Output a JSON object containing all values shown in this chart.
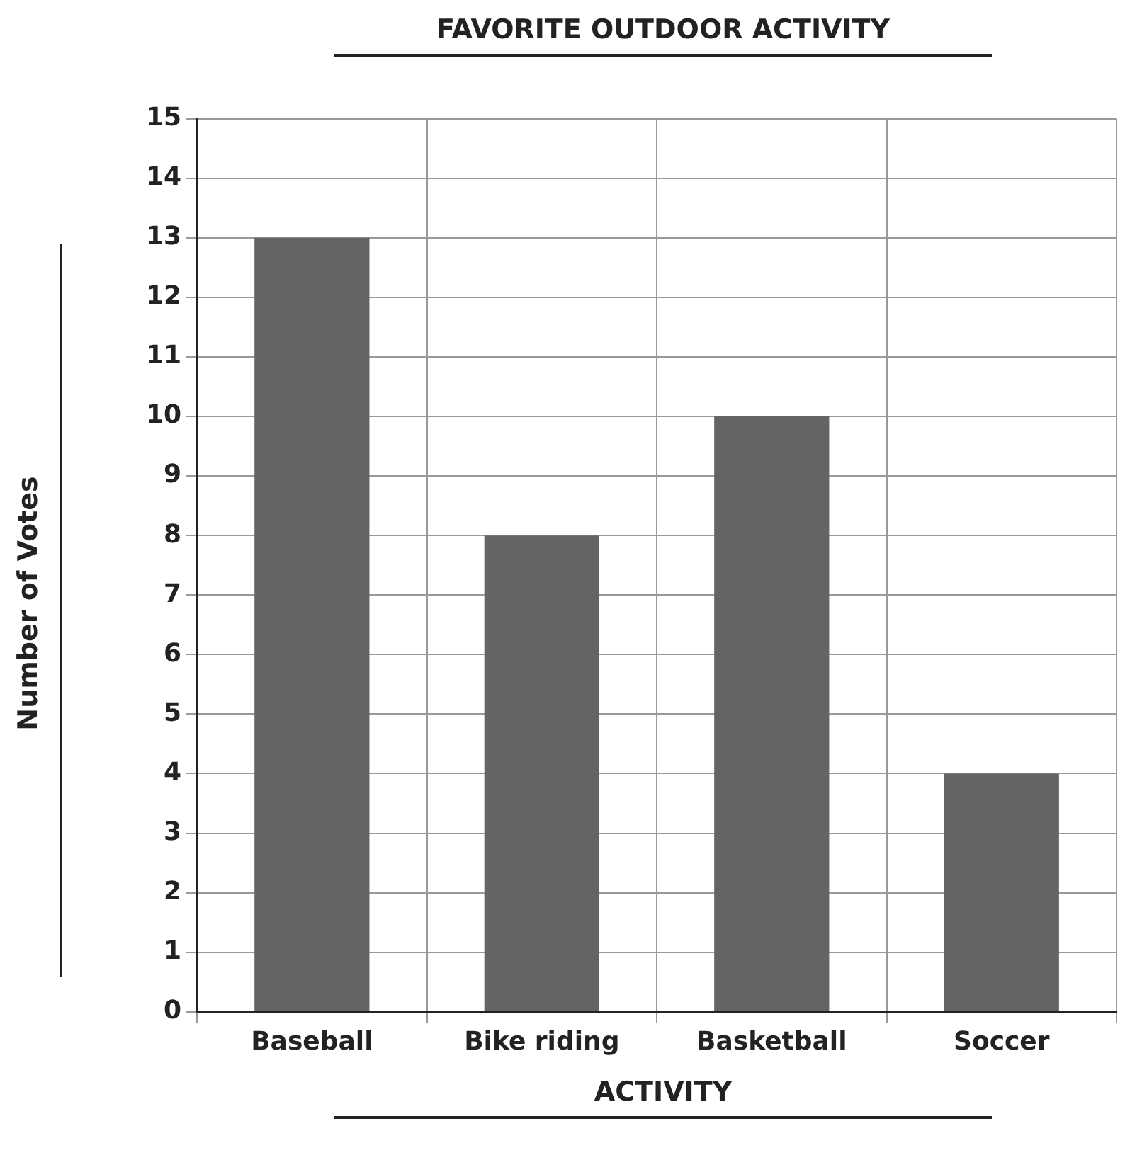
{
  "chart_data": {
    "type": "bar",
    "title": "FAVORITE OUTDOOR ACTIVITY",
    "xlabel": "ACTIVITY",
    "ylabel": "Number of Votes",
    "categories": [
      "Baseball",
      "Bike riding",
      "Basketball",
      "Soccer"
    ],
    "values": [
      13,
      8,
      10,
      4
    ],
    "color": "#646466",
    "ylim": [
      0,
      15
    ],
    "yticks": [
      0,
      1,
      2,
      3,
      4,
      5,
      6,
      7,
      8,
      9,
      10,
      11,
      12,
      13,
      14,
      15
    ],
    "grid": true,
    "legend": false
  }
}
